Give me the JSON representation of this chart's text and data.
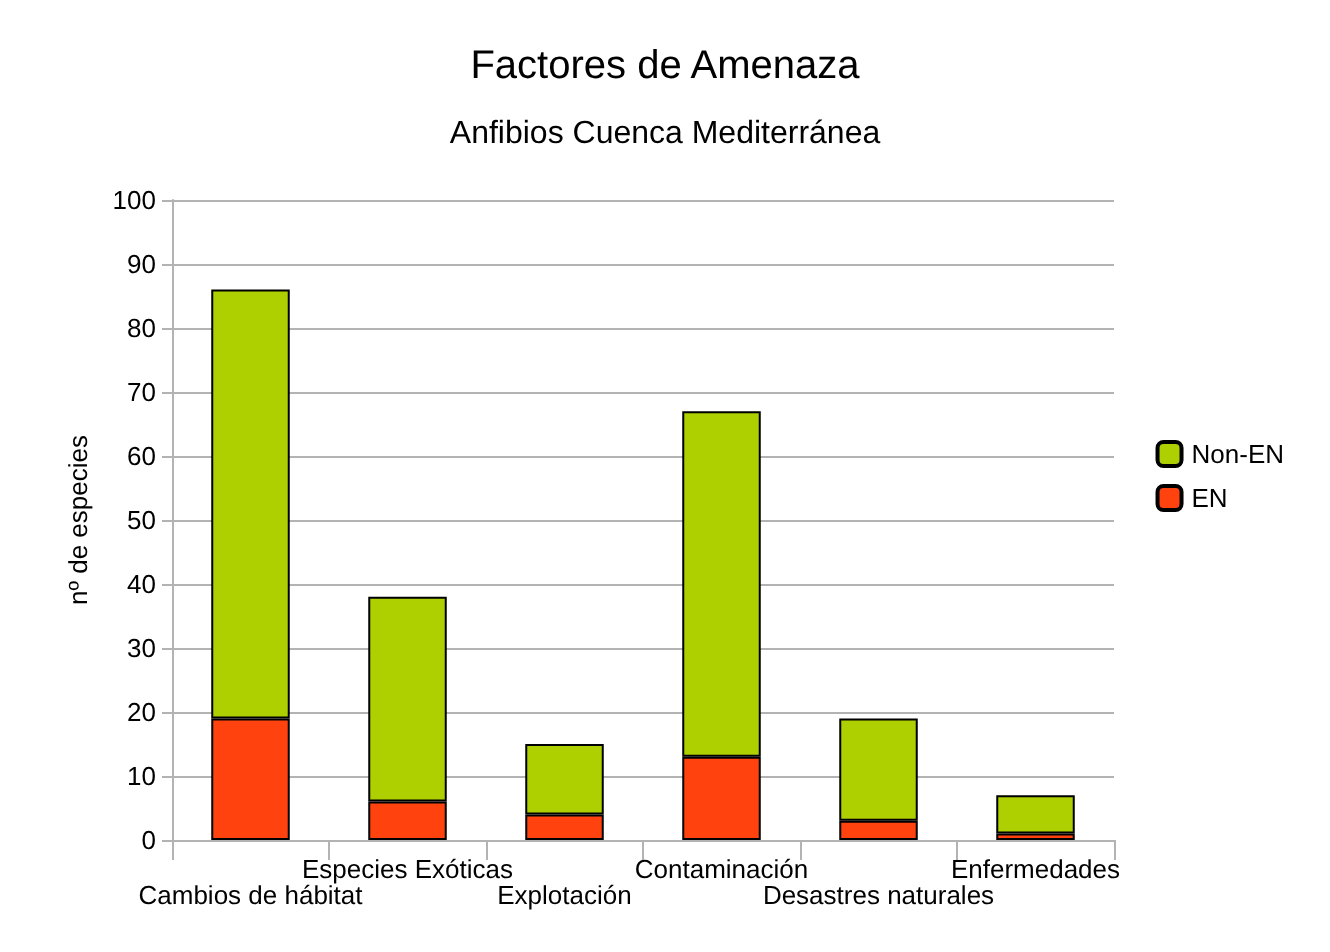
{
  "chart_data": {
    "type": "bar",
    "title": "Factores de Amenaza",
    "subtitle": "Anfibios Cuenca Mediterránea",
    "ylabel": "nº de especies",
    "categories": [
      "Cambios de hábitat",
      "Especies Exóticas",
      "Explotación",
      "Contaminación",
      "Desastres naturales",
      "Enfermedades"
    ],
    "stacked": true,
    "series": [
      {
        "name": "EN",
        "color": "#ff420e",
        "values": [
          19,
          6,
          4,
          13,
          3,
          1
        ]
      },
      {
        "name": "Non-EN",
        "color": "#aecf00",
        "values": [
          67,
          32,
          11,
          54,
          16,
          6
        ]
      }
    ],
    "ylim": [
      0,
      100
    ],
    "yticks": [
      0,
      10,
      20,
      30,
      40,
      50,
      60,
      70,
      80,
      90,
      100
    ],
    "grid": "y",
    "legend": "right"
  }
}
